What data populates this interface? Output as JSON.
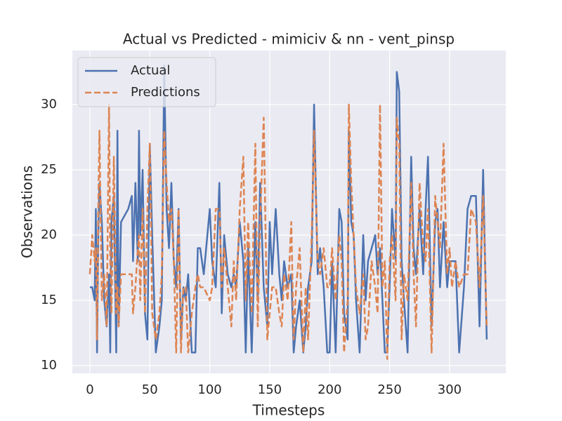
{
  "chart_data": {
    "type": "line",
    "title": "Actual vs Predicted - mimiciv & nn - vent_pinsp",
    "x_label": "Timesteps",
    "y_label": "Observations",
    "x": [
      0,
      2,
      4,
      5,
      6,
      7,
      8,
      10,
      12,
      14,
      16,
      17,
      18,
      20,
      22,
      23,
      24,
      26,
      32,
      35,
      36,
      38,
      40,
      41,
      42,
      44,
      46,
      48,
      50,
      52,
      55,
      58,
      60,
      62,
      64,
      66,
      68,
      70,
      72,
      74,
      76,
      78,
      80,
      82,
      85,
      88,
      90,
      92,
      95,
      100,
      102,
      105,
      108,
      110,
      112,
      115,
      118,
      120,
      122,
      125,
      128,
      130,
      132,
      135,
      138,
      140,
      142,
      145,
      148,
      150,
      152,
      155,
      158,
      160,
      162,
      165,
      168,
      170,
      172,
      175,
      178,
      180,
      182,
      185,
      187,
      190,
      192,
      195,
      198,
      200,
      202,
      205,
      208,
      210,
      212,
      215,
      216,
      218,
      220,
      222,
      225,
      228,
      230,
      232,
      235,
      238,
      240,
      242,
      244,
      246,
      248,
      250,
      252,
      255,
      256,
      258,
      260,
      262,
      265,
      268,
      270,
      272,
      275,
      278,
      280,
      282,
      285,
      288,
      290,
      292,
      295,
      298,
      300,
      302,
      305,
      308,
      312,
      315,
      318,
      322,
      325,
      328,
      331
    ],
    "series": [
      {
        "name": "Actual",
        "color": "#4c72b0",
        "dash": "solid",
        "values": [
          16,
          16,
          15,
          22,
          11,
          20,
          24,
          21,
          15,
          13,
          17,
          11,
          21,
          23,
          11,
          28,
          13,
          21,
          22,
          23,
          18,
          24,
          18,
          28,
          20,
          25,
          14,
          12,
          27,
          20,
          11,
          13,
          15,
          33,
          22,
          19,
          24,
          18,
          16,
          22,
          12,
          16,
          15,
          17,
          11,
          11,
          19,
          19,
          17,
          22,
          18,
          16,
          24,
          14,
          20,
          17,
          16,
          17,
          16,
          21,
          18,
          11,
          19,
          11,
          21,
          15,
          24,
          16,
          13,
          21,
          17,
          22,
          17,
          15,
          18,
          16,
          17,
          11,
          13,
          15,
          11,
          13,
          16,
          18,
          30,
          17,
          19,
          16,
          11,
          11,
          18,
          11,
          22,
          21,
          14,
          12,
          28,
          21,
          20,
          15,
          11,
          20,
          15,
          18,
          19,
          20,
          17,
          19,
          15,
          11,
          11,
          16,
          22,
          18,
          32.5,
          31,
          18,
          15,
          11,
          26,
          19,
          17,
          22,
          17,
          22,
          26,
          13,
          21,
          22,
          16,
          21,
          16,
          18,
          18,
          18,
          11,
          16,
          22,
          23,
          23,
          13,
          25,
          12
        ]
      },
      {
        "name": "Predictions",
        "color": "#dd8452",
        "dash": "dashed",
        "values": [
          17,
          20,
          18,
          19,
          12,
          22,
          28,
          15,
          17,
          13,
          30,
          18,
          14,
          26,
          14,
          16,
          13,
          17,
          17,
          17,
          14,
          16,
          19,
          20,
          15,
          22,
          14,
          22,
          27,
          14,
          12,
          14,
          17,
          28,
          24,
          21,
          22,
          18,
          11,
          22,
          11,
          16,
          16,
          11,
          14,
          16,
          17,
          16,
          16,
          15,
          16,
          22,
          22,
          16,
          19,
          16,
          13,
          18,
          15,
          22,
          26,
          15,
          21,
          14,
          27,
          13,
          21,
          29,
          12,
          14,
          16,
          16,
          14,
          13,
          17,
          15,
          21,
          12,
          16,
          19,
          11,
          16,
          12,
          20,
          28,
          18,
          17,
          19,
          16,
          16,
          19,
          15,
          20,
          18,
          11,
          15,
          30,
          24,
          20,
          16,
          14,
          17,
          12,
          13,
          18,
          16,
          14,
          30,
          16,
          18,
          10.5,
          18,
          20,
          15,
          29,
          27,
          12,
          17,
          15,
          24,
          17,
          13,
          24,
          19,
          18,
          22,
          11,
          23,
          21,
          19,
          27,
          17,
          19,
          16,
          18,
          16,
          17,
          17,
          22,
          21,
          16,
          23,
          13
        ]
      }
    ],
    "xlim": [
      -14.6,
      346.9
    ],
    "ylim": [
      9.41,
      34.14
    ],
    "xticks": [
      0,
      50,
      100,
      150,
      200,
      250,
      300
    ],
    "yticks": [
      10,
      15,
      20,
      25,
      30
    ],
    "grid": true,
    "legend": "upper-left"
  }
}
